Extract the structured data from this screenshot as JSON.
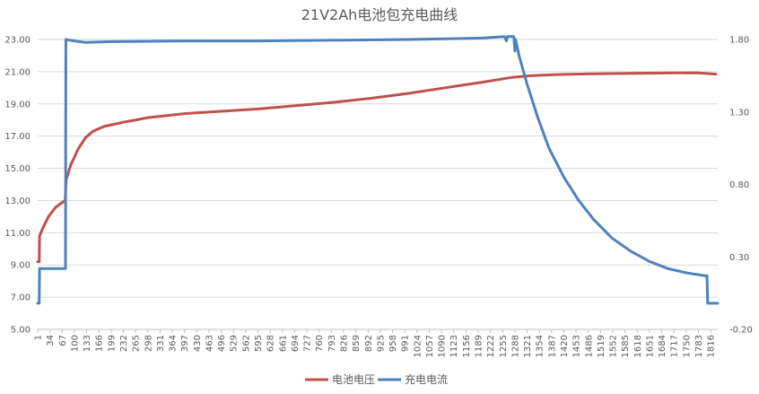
{
  "chart_data": {
    "type": "line",
    "title": "21V2Ah电池包充电曲线",
    "y_left": {
      "ticks": [
        "23.00",
        "21.00",
        "19.00",
        "17.00",
        "15.00",
        "13.00",
        "11.00",
        "9.00",
        "7.00",
        "5.00"
      ],
      "range": [
        5,
        23
      ]
    },
    "y_right": {
      "ticks": [
        "1.80",
        "1.30",
        "0.80",
        "0.30",
        "-0.20"
      ],
      "range": [
        -0.2,
        1.8
      ]
    },
    "x_ticks": [
      "1",
      "34",
      "67",
      "100",
      "133",
      "166",
      "199",
      "232",
      "265",
      "298",
      "331",
      "364",
      "397",
      "430",
      "463",
      "496",
      "529",
      "562",
      "595",
      "628",
      "661",
      "694",
      "727",
      "760",
      "793",
      "826",
      "859",
      "892",
      "925",
      "958",
      "991",
      "1024",
      "1057",
      "1090",
      "1123",
      "1156",
      "1189",
      "1222",
      "1255",
      "1288",
      "1321",
      "1354",
      "1387",
      "1420",
      "1453",
      "1486",
      "1519",
      "1552",
      "1585",
      "1618",
      "1651",
      "1684",
      "1717",
      "1750",
      "1783",
      "1816"
    ],
    "x_range": [
      1,
      1835
    ],
    "series": [
      {
        "name": "电池电压",
        "color": "#C0504D",
        "axis": "left",
        "points": [
          [
            1,
            9.2
          ],
          [
            5,
            9.2
          ],
          [
            6,
            10.8
          ],
          [
            15,
            11.3
          ],
          [
            30,
            12.0
          ],
          [
            50,
            12.6
          ],
          [
            75,
            13.0
          ],
          [
            78,
            14.3
          ],
          [
            90,
            15.2
          ],
          [
            110,
            16.2
          ],
          [
            130,
            16.9
          ],
          [
            150,
            17.3
          ],
          [
            180,
            17.6
          ],
          [
            230,
            17.85
          ],
          [
            300,
            18.15
          ],
          [
            400,
            18.4
          ],
          [
            500,
            18.55
          ],
          [
            600,
            18.7
          ],
          [
            700,
            18.9
          ],
          [
            800,
            19.1
          ],
          [
            900,
            19.35
          ],
          [
            1000,
            19.65
          ],
          [
            1100,
            20.0
          ],
          [
            1200,
            20.35
          ],
          [
            1280,
            20.65
          ],
          [
            1330,
            20.75
          ],
          [
            1400,
            20.82
          ],
          [
            1500,
            20.87
          ],
          [
            1600,
            20.9
          ],
          [
            1700,
            20.92
          ],
          [
            1780,
            20.93
          ],
          [
            1800,
            20.9
          ],
          [
            1830,
            20.85
          ]
        ]
      },
      {
        "name": "充电电流",
        "color": "#4F81BD",
        "axis": "right",
        "points": [
          [
            1,
            -0.02
          ],
          [
            5,
            -0.02
          ],
          [
            6,
            0.22
          ],
          [
            76,
            0.22
          ],
          [
            77,
            1.8
          ],
          [
            100,
            1.79
          ],
          [
            130,
            1.78
          ],
          [
            200,
            1.785
          ],
          [
            400,
            1.79
          ],
          [
            600,
            1.79
          ],
          [
            800,
            1.795
          ],
          [
            1000,
            1.8
          ],
          [
            1200,
            1.81
          ],
          [
            1260,
            1.82
          ],
          [
            1265,
            1.79
          ],
          [
            1268,
            1.82
          ],
          [
            1285,
            1.82
          ],
          [
            1288,
            1.72
          ],
          [
            1290,
            1.8
          ],
          [
            1300,
            1.68
          ],
          [
            1320,
            1.5
          ],
          [
            1350,
            1.26
          ],
          [
            1380,
            1.05
          ],
          [
            1420,
            0.85
          ],
          [
            1460,
            0.69
          ],
          [
            1500,
            0.56
          ],
          [
            1550,
            0.43
          ],
          [
            1600,
            0.34
          ],
          [
            1650,
            0.27
          ],
          [
            1700,
            0.22
          ],
          [
            1750,
            0.19
          ],
          [
            1800,
            0.17
          ],
          [
            1806,
            0.17
          ],
          [
            1808,
            -0.02
          ],
          [
            1835,
            -0.02
          ]
        ]
      }
    ],
    "legend": {
      "position": "bottom",
      "items": [
        {
          "label": "电池电压",
          "color": "#C0504D"
        },
        {
          "label": "充电电流",
          "color": "#4F81BD"
        }
      ]
    },
    "grid": true
  }
}
